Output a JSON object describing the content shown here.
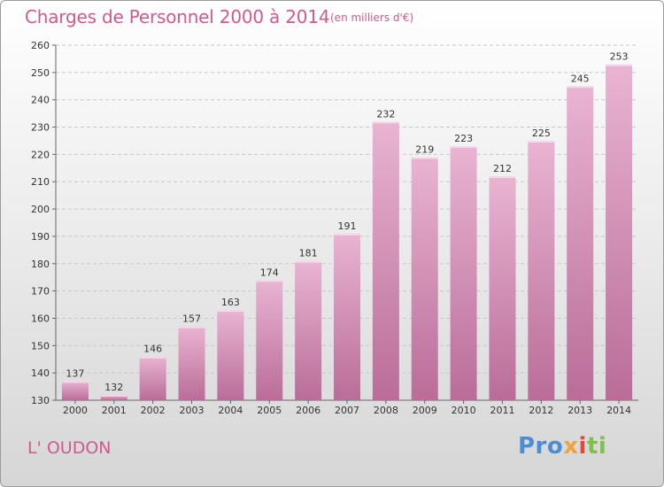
{
  "title": "Charges de Personnel 2000 à 2014",
  "subtitle": "(en milliers d'€)",
  "place": "L' OUDON",
  "logo": {
    "p1": "Pro",
    "p2": "x",
    "p3": "i",
    "p4": "ti"
  },
  "colors": {
    "bar_light": "#e9b4d2",
    "bar_dark": "#b96d98",
    "title": "#d05a8f"
  },
  "chart_data": {
    "type": "bar",
    "title": "Charges de Personnel 2000 à 2014",
    "subtitle": "(en milliers d'€)",
    "categories": [
      "2000",
      "2001",
      "2002",
      "2003",
      "2004",
      "2005",
      "2006",
      "2007",
      "2008",
      "2009",
      "2010",
      "2011",
      "2012",
      "2013",
      "2014"
    ],
    "values": [
      137,
      132,
      146,
      157,
      163,
      174,
      181,
      191,
      232,
      219,
      223,
      212,
      225,
      245,
      253
    ],
    "ylim": [
      130,
      260
    ],
    "yticks": [
      130,
      140,
      150,
      160,
      170,
      180,
      190,
      200,
      210,
      220,
      230,
      240,
      250,
      260
    ],
    "grid": true,
    "legend": "none"
  }
}
